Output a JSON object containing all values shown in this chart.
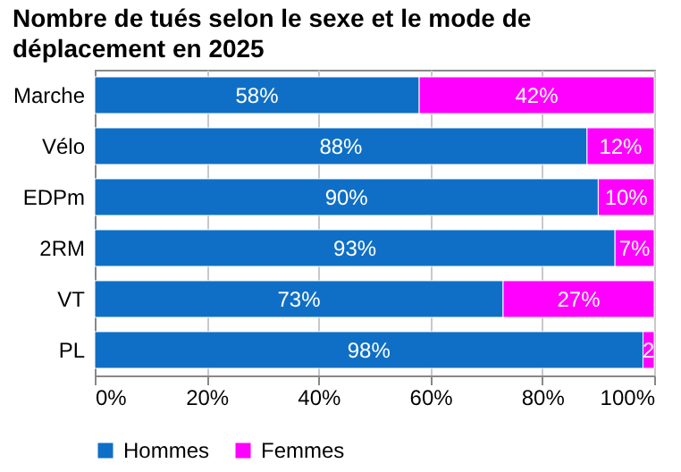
{
  "chart_data": {
    "type": "bar",
    "orientation": "horizontal",
    "stacked": true,
    "title": "Nombre de tués selon le sexe et le mode de déplacement en 2025",
    "categories": [
      "Marche",
      "Vélo",
      "EDPm",
      "2RM",
      "VT",
      "PL"
    ],
    "series": [
      {
        "name": "Hommes",
        "color": "#0f6fc6",
        "values": [
          58,
          88,
          90,
          93,
          73,
          98
        ],
        "value_labels": [
          "58%",
          "88%",
          "90%",
          "93%",
          "73%",
          "98%"
        ]
      },
      {
        "name": "Femmes",
        "color": "#ff00ff",
        "values": [
          42,
          12,
          10,
          7,
          27,
          2
        ],
        "value_labels": [
          "42%",
          "12%",
          "10%",
          "7%",
          "27%",
          "2"
        ]
      }
    ],
    "xlim": [
      0,
      100
    ],
    "xticks": [
      {
        "value": 0,
        "label": "0%"
      },
      {
        "value": 20,
        "label": "20%"
      },
      {
        "value": 40,
        "label": "40%"
      },
      {
        "value": 60,
        "label": "60%"
      },
      {
        "value": 80,
        "label": "80%"
      },
      {
        "value": 100,
        "label": "100%"
      }
    ],
    "grid": "x",
    "legend": "bottom"
  }
}
